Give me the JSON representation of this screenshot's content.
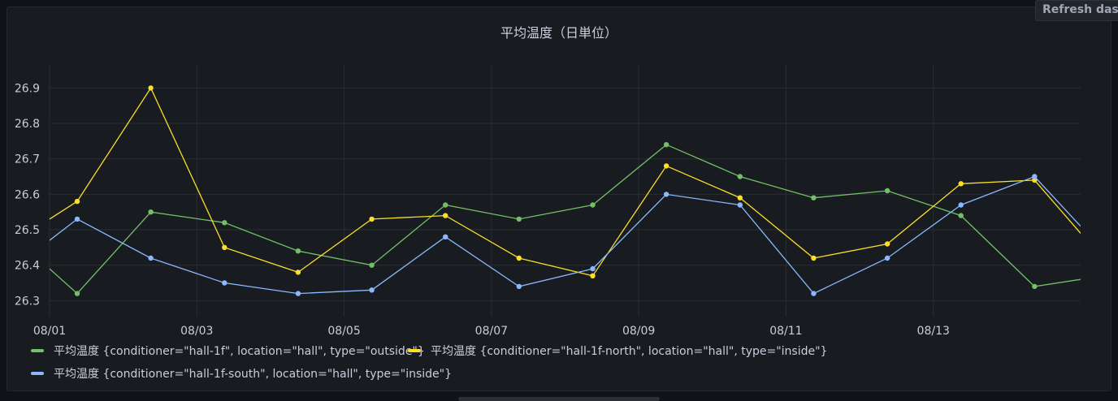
{
  "panel": {
    "title": "平均温度（日単位）"
  },
  "toolbar": {
    "refresh_label": "Refresh dashboard"
  },
  "chart_data": {
    "type": "line",
    "title": "平均温度（日単位）",
    "xlabel": "",
    "ylabel": "",
    "x_tick_labels": [
      "08/01",
      "08/03",
      "08/05",
      "08/07",
      "08/09",
      "08/11",
      "08/13"
    ],
    "y_tick_labels": [
      "26.3",
      "26.4",
      "26.5",
      "26.6",
      "26.7",
      "26.8",
      "26.9"
    ],
    "x_range": [
      "08/01 00:00",
      "08/15 00:00"
    ],
    "ylim": [
      26.255,
      26.965
    ],
    "grid": true,
    "legend_position": "bottom-left",
    "x": [
      "08/01 00:00",
      "08/01 09:00",
      "08/02 09:00",
      "08/03 09:00",
      "08/04 09:00",
      "08/05 09:00",
      "08/06 09:00",
      "08/07 09:00",
      "08/08 09:00",
      "08/09 09:00",
      "08/10 09:00",
      "08/11 09:00",
      "08/12 09:00",
      "08/13 09:00",
      "08/14 09:00",
      "08/15 00:00"
    ],
    "series": [
      {
        "name": "平均温度 {conditioner=\"hall-1f\", location=\"hall\", type=\"outside\"}",
        "color": "#73bf69",
        "values": [
          26.39,
          26.32,
          26.55,
          26.52,
          26.44,
          26.4,
          26.57,
          26.53,
          26.57,
          26.74,
          26.65,
          26.59,
          26.61,
          26.54,
          26.34,
          26.36
        ]
      },
      {
        "name": "平均温度 {conditioner=\"hall-1f-north\", location=\"hall\", type=\"inside\"}",
        "color": "#fade2a",
        "values": [
          26.53,
          26.58,
          26.9,
          26.45,
          26.38,
          26.53,
          26.54,
          26.42,
          26.37,
          26.68,
          26.59,
          26.42,
          26.46,
          26.63,
          26.64,
          26.49
        ]
      },
      {
        "name": "平均温度 {conditioner=\"hall-1f-south\", location=\"hall\", type=\"inside\"}",
        "color": "#8ab8ff",
        "values": [
          26.47,
          26.53,
          26.42,
          26.35,
          26.32,
          26.33,
          26.48,
          26.34,
          26.39,
          26.6,
          26.57,
          26.32,
          26.42,
          26.57,
          26.65,
          26.51
        ]
      }
    ]
  }
}
